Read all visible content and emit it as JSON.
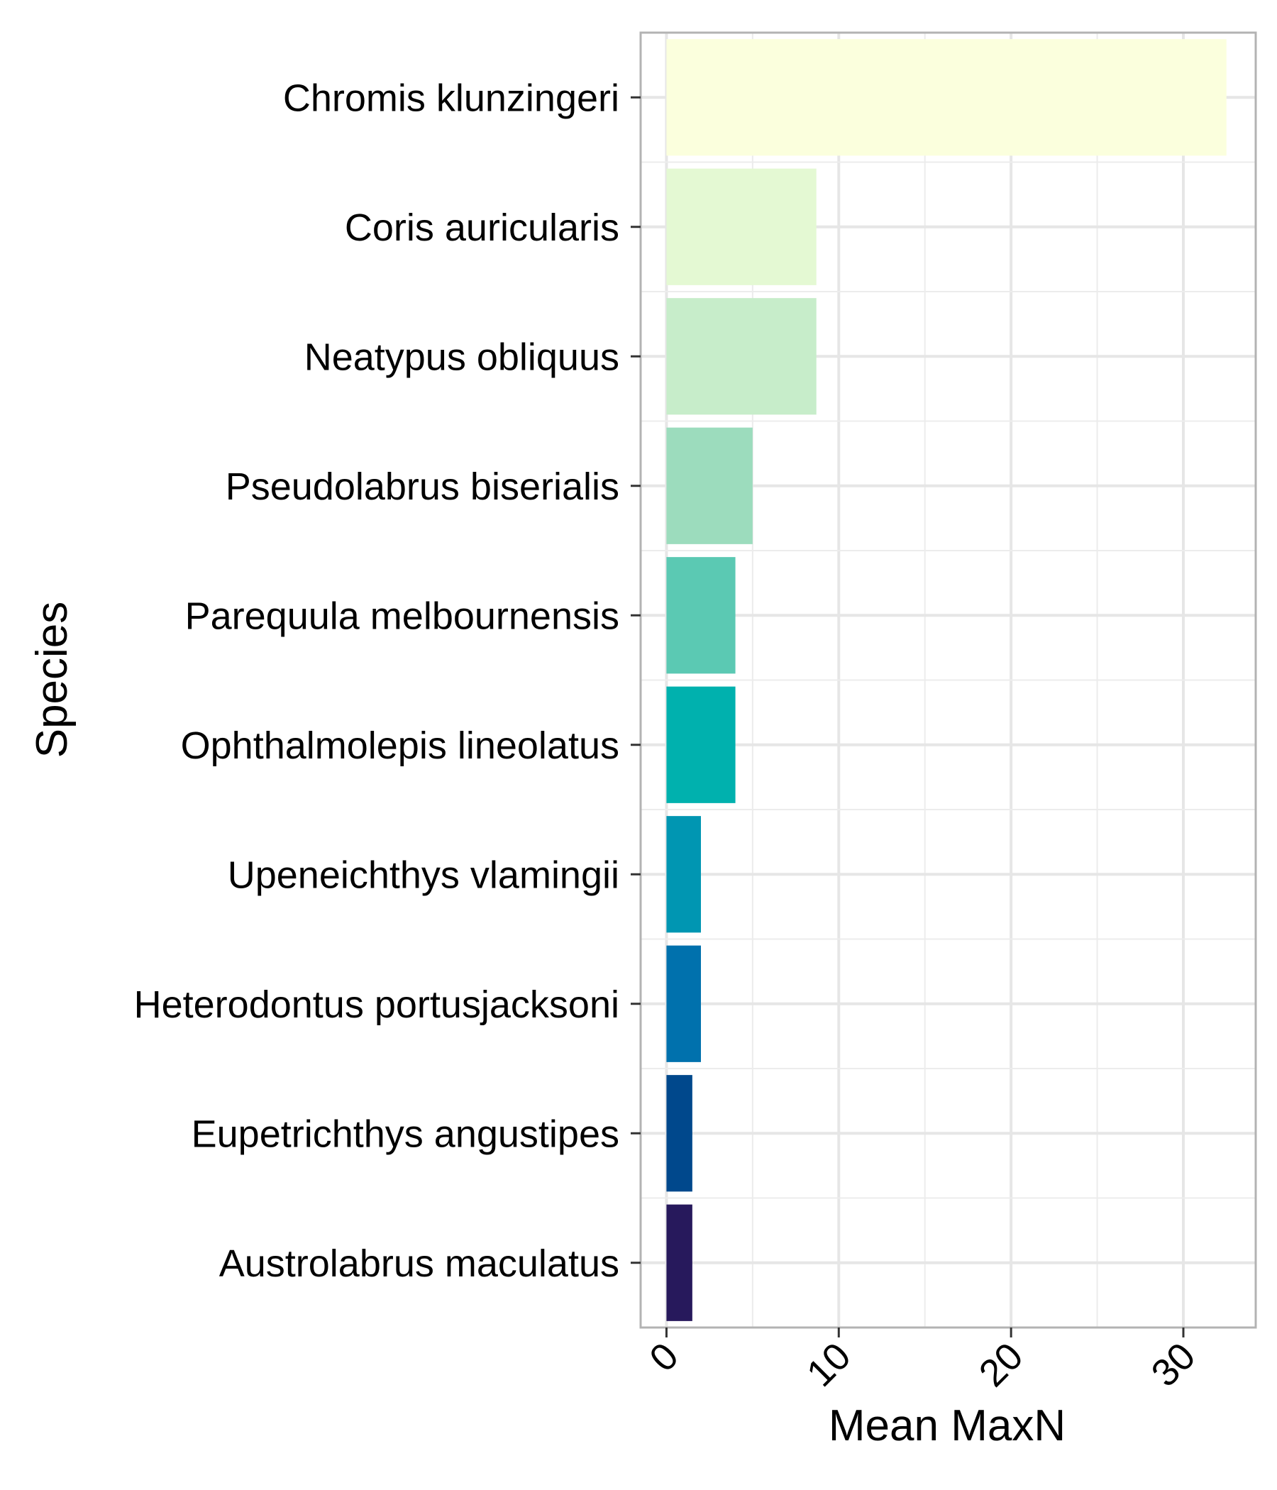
{
  "chart_data": {
    "type": "bar",
    "orientation": "horizontal",
    "xlabel": "Mean MaxN",
    "ylabel": "Species",
    "xlim": [
      -1.5,
      34.2
    ],
    "xticks": [
      0,
      10,
      20,
      30
    ],
    "xtick_labels": [
      "0",
      "10",
      "20",
      "30"
    ],
    "grid": true,
    "categories": [
      "Chromis klunzingeri",
      "Coris auricularis",
      "Neatypus obliquus",
      "Pseudolabrus biserialis",
      "Parequula melbournensis",
      "Ophthalmolepis lineolatus",
      "Upeneichthys vlamingii",
      "Heterodontus portusjacksoni",
      "Eupetrichthys angustipes",
      "Austrolabrus maculatus"
    ],
    "values": [
      32.5,
      8.7,
      8.7,
      5.0,
      4.0,
      4.0,
      2.0,
      2.0,
      1.5,
      1.5
    ],
    "colors": [
      "#fbffdd",
      "#e4f9d3",
      "#c7edca",
      "#9cdcbd",
      "#5bc9b3",
      "#00b1ae",
      "#0096b2",
      "#0071ad",
      "#00488c",
      "#27195c"
    ]
  }
}
